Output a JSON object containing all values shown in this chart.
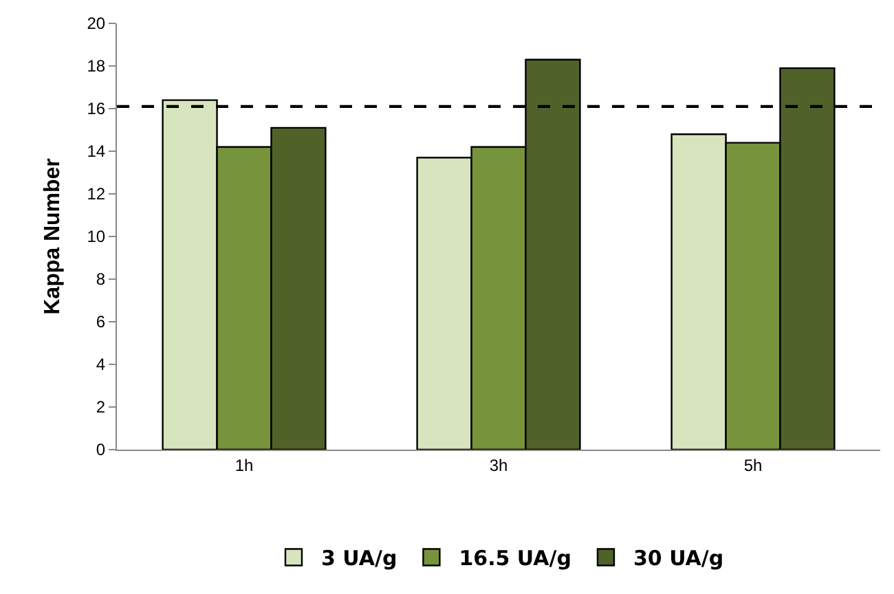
{
  "chart_data": {
    "type": "bar",
    "ylabel": "Kappa Number",
    "categories": [
      "1h",
      "3h",
      "5h"
    ],
    "series": [
      {
        "name": "3 UA/g",
        "color": "#d7e4bd",
        "values": [
          16.4,
          13.7,
          14.8
        ]
      },
      {
        "name": "16.5 UA/g",
        "color": "#77933c",
        "values": [
          14.2,
          14.2,
          14.4
        ]
      },
      {
        "name": "30 UA/g",
        "color": "#4f6228",
        "values": [
          15.1,
          18.3,
          17.9
        ]
      }
    ],
    "ylim": [
      0,
      20
    ],
    "yticks": [
      0,
      2,
      4,
      6,
      8,
      10,
      12,
      14,
      16,
      18,
      20
    ],
    "legend": "bottom",
    "ref_lines": [
      {
        "axis": "y",
        "value": 16.1,
        "color": "#000000",
        "line_style": "dashed"
      }
    ]
  }
}
